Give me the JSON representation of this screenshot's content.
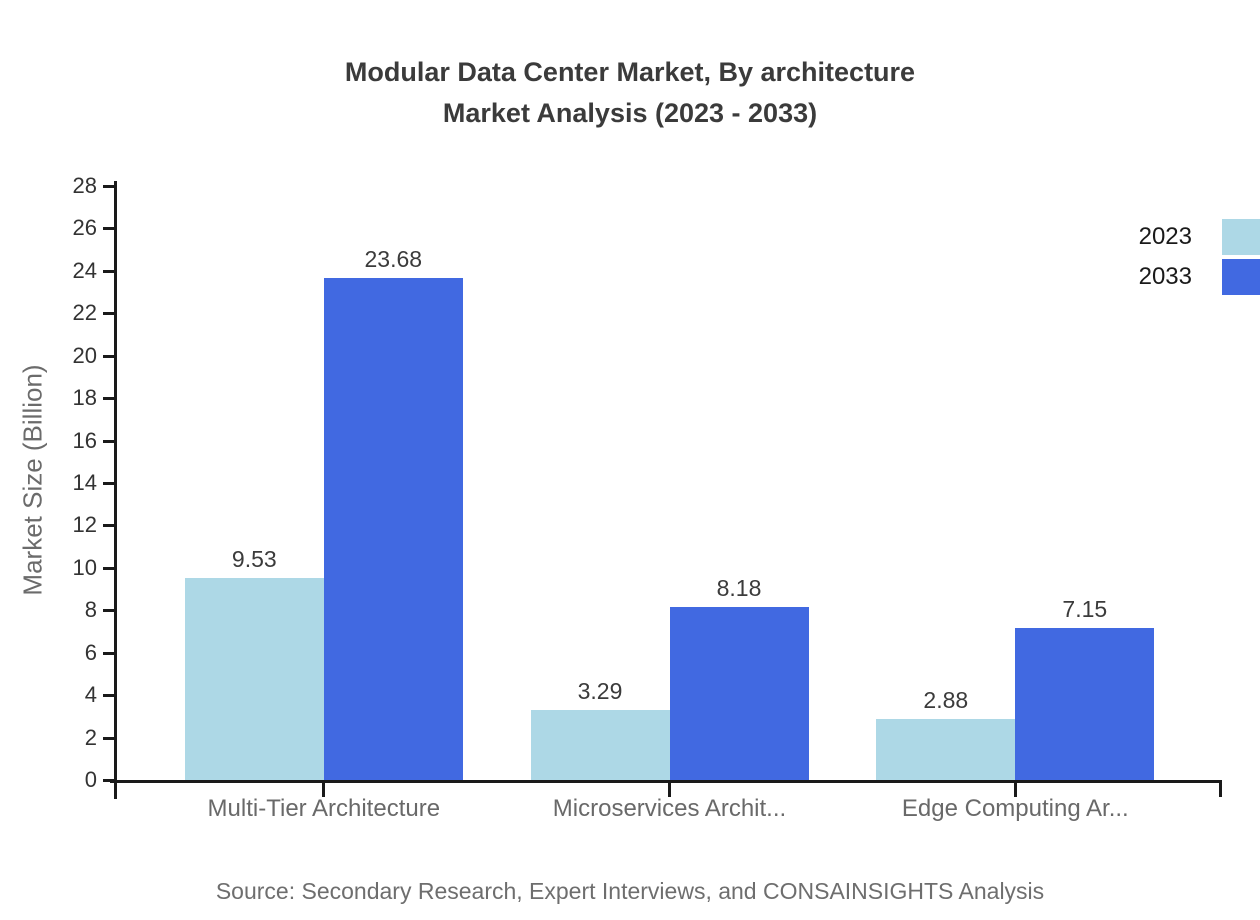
{
  "title": {
    "line1": "Modular Data Center Market, By architecture",
    "line2": "Market Analysis (2023 - 2033)"
  },
  "source": "Source: Secondary Research, Expert Interviews, and CONSAINSIGHTS Analysis",
  "legend": [
    {
      "label": "2023",
      "color": "#ADD8E6"
    },
    {
      "label": "2033",
      "color": "#4169E1"
    }
  ],
  "chart_data": {
    "type": "bar",
    "categories": [
      "Multi-Tier Architecture",
      "Microservices Archit...",
      "Edge Computing Ar..."
    ],
    "series": [
      {
        "name": "2023",
        "color": "#ADD8E6",
        "values": [
          9.53,
          3.29,
          2.88
        ]
      },
      {
        "name": "2033",
        "color": "#4169E1",
        "values": [
          23.68,
          8.18,
          7.15
        ]
      }
    ],
    "title": "Modular Data Center Market, By architecture Market Analysis (2023 - 2033)",
    "xlabel": "",
    "ylabel": "Market Size (Billion)",
    "ylim": [
      0,
      28
    ],
    "ytick_step": 2,
    "grid": false,
    "legend_position": "top-right",
    "value_labels": true,
    "axis_color": "#1a1a1a",
    "tick_label_color": "#333333",
    "category_label_color": "#696969"
  }
}
